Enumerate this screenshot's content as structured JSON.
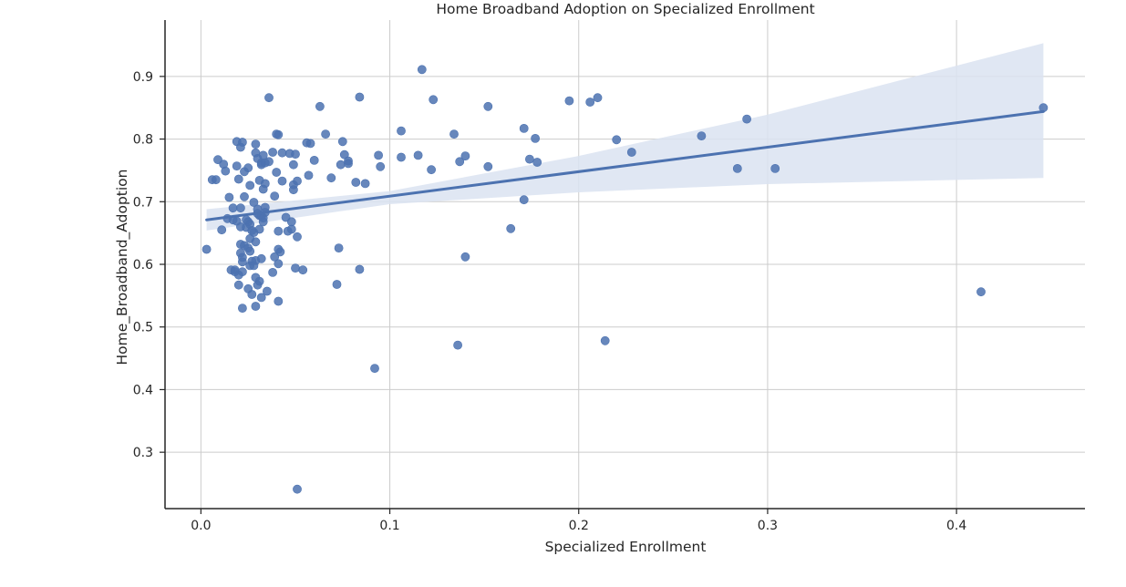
{
  "chart_data": {
    "type": "scatter",
    "title": "Home Broadband Adoption on Specialized Enrollment",
    "xlabel": "Specialized Enrollment",
    "ylabel": "Home_Broadband_Adoption",
    "xlim": [
      -0.019,
      0.468
    ],
    "ylim": [
      0.21,
      0.99
    ],
    "xticks": [
      0.0,
      0.1,
      0.2,
      0.3,
      0.4
    ],
    "xtick_labels": [
      "0.0",
      "0.1",
      "0.2",
      "0.3",
      "0.4"
    ],
    "yticks": [
      0.3,
      0.4,
      0.5,
      0.6,
      0.7,
      0.8,
      0.9
    ],
    "ytick_labels": [
      "0.3",
      "0.4",
      "0.5",
      "0.6",
      "0.7",
      "0.8",
      "0.9"
    ],
    "grid": true,
    "colors": {
      "points": "#4c72b0",
      "line": "#4c72b0",
      "band": "#dbe3f1",
      "grid": "#cccccc",
      "axis": "#262626"
    },
    "regression": {
      "x": [
        0.003,
        0.446
      ],
      "y": [
        0.671,
        0.844
      ]
    },
    "confidence_band": {
      "x": [
        0.003,
        0.1,
        0.2,
        0.3,
        0.446
      ],
      "lower": [
        0.654,
        0.696,
        0.715,
        0.728,
        0.738
      ],
      "upper": [
        0.688,
        0.717,
        0.773,
        0.839,
        0.953
      ]
    },
    "points": [
      [
        0.003,
        0.624
      ],
      [
        0.006,
        0.735
      ],
      [
        0.008,
        0.735
      ],
      [
        0.009,
        0.767
      ],
      [
        0.011,
        0.655
      ],
      [
        0.012,
        0.76
      ],
      [
        0.013,
        0.749
      ],
      [
        0.014,
        0.673
      ],
      [
        0.015,
        0.707
      ],
      [
        0.016,
        0.591
      ],
      [
        0.017,
        0.671
      ],
      [
        0.017,
        0.69
      ],
      [
        0.018,
        0.591
      ],
      [
        0.018,
        0.588
      ],
      [
        0.019,
        0.796
      ],
      [
        0.019,
        0.757
      ],
      [
        0.019,
        0.669
      ],
      [
        0.02,
        0.583
      ],
      [
        0.02,
        0.567
      ],
      [
        0.02,
        0.736
      ],
      [
        0.021,
        0.69
      ],
      [
        0.021,
        0.66
      ],
      [
        0.021,
        0.632
      ],
      [
        0.021,
        0.618
      ],
      [
        0.021,
        0.787
      ],
      [
        0.022,
        0.795
      ],
      [
        0.022,
        0.611
      ],
      [
        0.022,
        0.604
      ],
      [
        0.022,
        0.53
      ],
      [
        0.022,
        0.588
      ],
      [
        0.023,
        0.748
      ],
      [
        0.023,
        0.708
      ],
      [
        0.023,
        0.63
      ],
      [
        0.024,
        0.671
      ],
      [
        0.024,
        0.659
      ],
      [
        0.025,
        0.754
      ],
      [
        0.025,
        0.668
      ],
      [
        0.025,
        0.626
      ],
      [
        0.025,
        0.561
      ],
      [
        0.026,
        0.598
      ],
      [
        0.026,
        0.726
      ],
      [
        0.026,
        0.664
      ],
      [
        0.026,
        0.641
      ],
      [
        0.026,
        0.621
      ],
      [
        0.027,
        0.605
      ],
      [
        0.027,
        0.552
      ],
      [
        0.027,
        0.654
      ],
      [
        0.028,
        0.699
      ],
      [
        0.028,
        0.651
      ],
      [
        0.028,
        0.598
      ],
      [
        0.029,
        0.778
      ],
      [
        0.029,
        0.792
      ],
      [
        0.029,
        0.636
      ],
      [
        0.029,
        0.606
      ],
      [
        0.029,
        0.579
      ],
      [
        0.029,
        0.533
      ],
      [
        0.03,
        0.769
      ],
      [
        0.03,
        0.681
      ],
      [
        0.03,
        0.688
      ],
      [
        0.03,
        0.567
      ],
      [
        0.031,
        0.734
      ],
      [
        0.031,
        0.678
      ],
      [
        0.031,
        0.656
      ],
      [
        0.031,
        0.573
      ],
      [
        0.032,
        0.759
      ],
      [
        0.032,
        0.762
      ],
      [
        0.032,
        0.677
      ],
      [
        0.032,
        0.609
      ],
      [
        0.032,
        0.547
      ],
      [
        0.033,
        0.774
      ],
      [
        0.033,
        0.72
      ],
      [
        0.033,
        0.674
      ],
      [
        0.033,
        0.668
      ],
      [
        0.034,
        0.762
      ],
      [
        0.034,
        0.729
      ],
      [
        0.034,
        0.691
      ],
      [
        0.034,
        0.683
      ],
      [
        0.035,
        0.557
      ],
      [
        0.036,
        0.866
      ],
      [
        0.036,
        0.764
      ],
      [
        0.038,
        0.779
      ],
      [
        0.038,
        0.587
      ],
      [
        0.039,
        0.612
      ],
      [
        0.039,
        0.709
      ],
      [
        0.04,
        0.808
      ],
      [
        0.04,
        0.747
      ],
      [
        0.041,
        0.807
      ],
      [
        0.041,
        0.653
      ],
      [
        0.041,
        0.624
      ],
      [
        0.041,
        0.601
      ],
      [
        0.041,
        0.541
      ],
      [
        0.042,
        0.62
      ],
      [
        0.043,
        0.733
      ],
      [
        0.043,
        0.778
      ],
      [
        0.045,
        0.675
      ],
      [
        0.046,
        0.653
      ],
      [
        0.047,
        0.777
      ],
      [
        0.048,
        0.656
      ],
      [
        0.048,
        0.668
      ],
      [
        0.049,
        0.727
      ],
      [
        0.049,
        0.719
      ],
      [
        0.049,
        0.759
      ],
      [
        0.05,
        0.776
      ],
      [
        0.05,
        0.594
      ],
      [
        0.051,
        0.733
      ],
      [
        0.051,
        0.644
      ],
      [
        0.051,
        0.241
      ],
      [
        0.054,
        0.591
      ],
      [
        0.056,
        0.794
      ],
      [
        0.057,
        0.742
      ],
      [
        0.058,
        0.793
      ],
      [
        0.06,
        0.766
      ],
      [
        0.063,
        0.852
      ],
      [
        0.066,
        0.808
      ],
      [
        0.069,
        0.738
      ],
      [
        0.072,
        0.568
      ],
      [
        0.073,
        0.626
      ],
      [
        0.074,
        0.759
      ],
      [
        0.075,
        0.796
      ],
      [
        0.076,
        0.775
      ],
      [
        0.078,
        0.765
      ],
      [
        0.078,
        0.761
      ],
      [
        0.082,
        0.731
      ],
      [
        0.084,
        0.867
      ],
      [
        0.084,
        0.592
      ],
      [
        0.087,
        0.729
      ],
      [
        0.092,
        0.434
      ],
      [
        0.094,
        0.774
      ],
      [
        0.095,
        0.756
      ],
      [
        0.106,
        0.813
      ],
      [
        0.106,
        0.771
      ],
      [
        0.115,
        0.774
      ],
      [
        0.117,
        0.911
      ],
      [
        0.122,
        0.751
      ],
      [
        0.123,
        0.863
      ],
      [
        0.134,
        0.808
      ],
      [
        0.136,
        0.471
      ],
      [
        0.137,
        0.764
      ],
      [
        0.14,
        0.773
      ],
      [
        0.14,
        0.612
      ],
      [
        0.152,
        0.852
      ],
      [
        0.152,
        0.756
      ],
      [
        0.164,
        0.657
      ],
      [
        0.171,
        0.817
      ],
      [
        0.171,
        0.703
      ],
      [
        0.174,
        0.768
      ],
      [
        0.177,
        0.801
      ],
      [
        0.178,
        0.763
      ],
      [
        0.195,
        0.861
      ],
      [
        0.206,
        0.859
      ],
      [
        0.21,
        0.866
      ],
      [
        0.214,
        0.478
      ],
      [
        0.22,
        0.799
      ],
      [
        0.228,
        0.779
      ],
      [
        0.265,
        0.805
      ],
      [
        0.284,
        0.753
      ],
      [
        0.289,
        0.832
      ],
      [
        0.304,
        0.753
      ],
      [
        0.413,
        0.556
      ],
      [
        0.446,
        0.85
      ]
    ]
  }
}
